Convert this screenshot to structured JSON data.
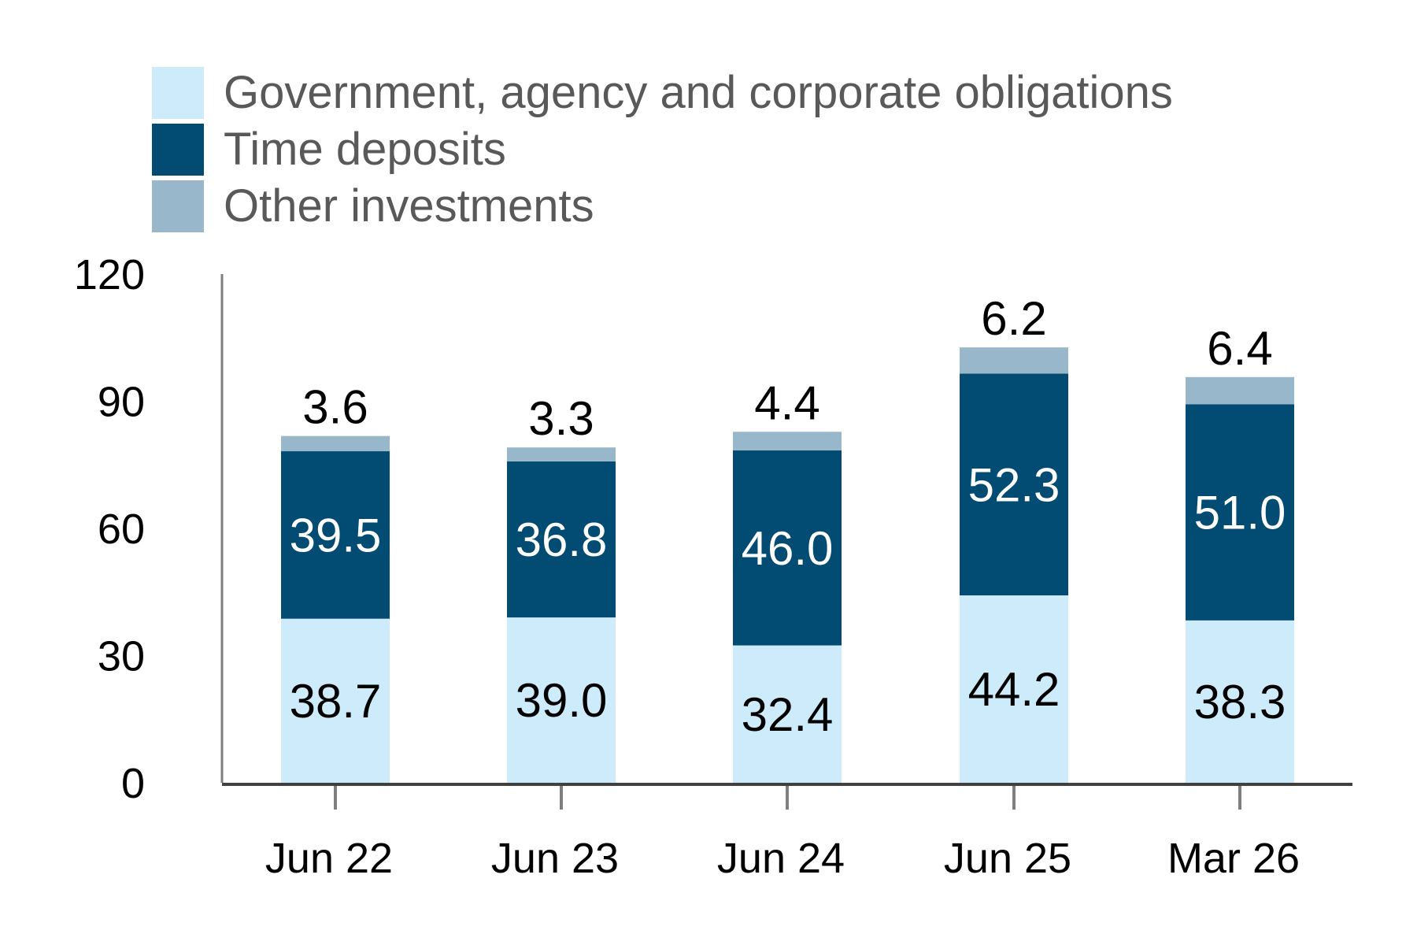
{
  "chart_data": {
    "type": "bar",
    "stacked": true,
    "title": "",
    "xlabel": "",
    "ylabel": "",
    "categories": [
      "Jun 22",
      "Jun 23",
      "Jun 24",
      "Jun 25",
      "Mar 26"
    ],
    "ylim": [
      0,
      120
    ],
    "yticks": [
      "0",
      "30",
      "60",
      "90",
      "120"
    ],
    "grid": false,
    "legend_position": "top-left",
    "series": [
      {
        "name": "Government, agency and corporate obligations",
        "color": "#CDEBFA",
        "label_color": "#000000",
        "values": [
          38.7,
          39.0,
          32.4,
          44.2,
          38.3
        ],
        "labels": [
          "38.7",
          "39.0",
          "32.4",
          "44.2",
          "38.3"
        ]
      },
      {
        "name": "Time deposits",
        "color": "#024B72",
        "label_color": "#FFFFFF",
        "values": [
          39.5,
          36.8,
          46.0,
          52.3,
          51.0
        ],
        "labels": [
          "39.5",
          "36.8",
          "46.0",
          "52.3",
          "51.0"
        ]
      },
      {
        "name": "Other investments",
        "color": "#99B7CA",
        "label_color": "#000000",
        "values": [
          3.6,
          3.3,
          4.4,
          6.2,
          6.4
        ],
        "labels": [
          "3.6",
          "3.3",
          "4.4",
          "6.2",
          "6.4"
        ]
      }
    ],
    "axis_color": "#7F7F7F"
  }
}
